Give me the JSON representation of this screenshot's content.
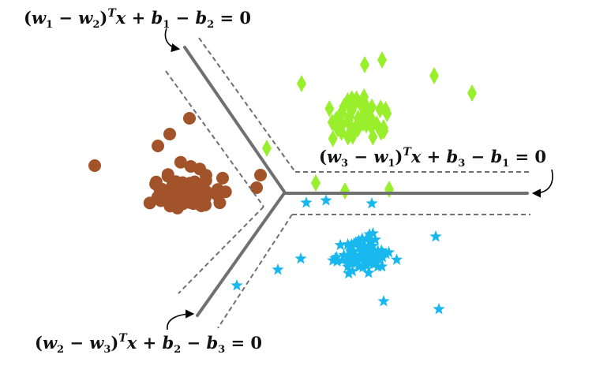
{
  "colors": {
    "background": "#ffffff",
    "boundary": "#707070",
    "margin": "#707070",
    "arrow": "#000000",
    "class_brown": "#a2532a",
    "class_green": "#9aef2d",
    "class_blue": "#18b8ef"
  },
  "markers": {
    "brown": "circle",
    "green": "diamond",
    "blue": "star"
  },
  "equations": {
    "eq12": {
      "open": "(",
      "w_a": "w",
      "w_a_sub": "1",
      "minus": " − ",
      "w_b": "w",
      "w_b_sub": "2",
      "close": ")",
      "sup": "T",
      "mid": "x + ",
      "b_a": "b",
      "b_a_sub": "1",
      "minus2": " − ",
      "b_b": "b",
      "b_b_sub": "2",
      "end": " = 0"
    },
    "eq31": {
      "open": "(",
      "w_a": "w",
      "w_a_sub": "3",
      "minus": " − ",
      "w_b": "w",
      "w_b_sub": "1",
      "close": ")",
      "sup": "T",
      "mid": "x + ",
      "b_a": "b",
      "b_a_sub": "3",
      "minus2": " − ",
      "b_b": "b",
      "b_b_sub": "1",
      "end": " = 0"
    },
    "eq23": {
      "open": "(",
      "w_a": "w",
      "w_a_sub": "2",
      "minus": " − ",
      "w_b": "w",
      "w_b_sub": "3",
      "close": ")",
      "sup": "T",
      "mid": "x + ",
      "b_a": "b",
      "b_a_sub": "2",
      "minus2": " − ",
      "b_b": "b",
      "b_b_sub": "3",
      "end": " = 0"
    }
  }
}
